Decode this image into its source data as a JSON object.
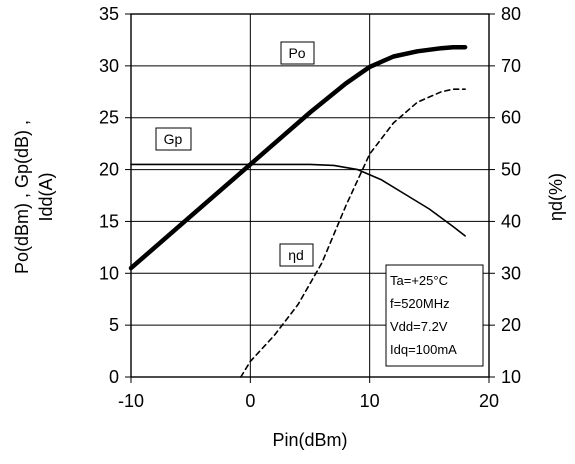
{
  "chart_data": {
    "type": "line",
    "xlabel": "Pin(dBm)",
    "ylabel_left": "Po(dBm) , Gp(dB) , Idd(A)",
    "ylabel_right": "ηd(%)",
    "xlim": [
      -10,
      20
    ],
    "ylim_left": [
      0,
      35
    ],
    "ylim_right": [
      10,
      80
    ],
    "x_ticks": [
      "-10",
      "0",
      "10",
      "20"
    ],
    "y_ticks_left": [
      "0",
      "5",
      "10",
      "15",
      "20",
      "25",
      "30",
      "35"
    ],
    "y_ticks_right": [
      "10",
      "20",
      "30",
      "40",
      "50",
      "60",
      "70",
      "80"
    ],
    "grid": true,
    "series": [
      {
        "name": "Po",
        "axis": "left",
        "style": "thick",
        "x": [
          -10,
          -5,
          0,
          5,
          8,
          10,
          12,
          14,
          16,
          17,
          18
        ],
        "y": [
          10.5,
          15.5,
          20.5,
          25.5,
          28.3,
          29.9,
          30.9,
          31.4,
          31.7,
          31.8,
          31.8
        ]
      },
      {
        "name": "Gp",
        "axis": "left",
        "style": "thin",
        "x": [
          -10,
          -5,
          0,
          5,
          7,
          9,
          11,
          13,
          15,
          17,
          18
        ],
        "y": [
          20.5,
          20.5,
          20.5,
          20.5,
          20.4,
          20.0,
          19.0,
          17.6,
          16.2,
          14.5,
          13.6
        ]
      },
      {
        "name": "ηd",
        "axis": "right",
        "style": "dashed",
        "x": [
          -0.8,
          0,
          2,
          4,
          6,
          8,
          10,
          12,
          14,
          16,
          17,
          18
        ],
        "y": [
          10,
          13,
          18,
          24,
          32,
          43,
          53,
          59,
          63,
          65,
          65.5,
          65.5
        ]
      }
    ],
    "annotation_box": [
      "Ta=+25°C",
      "f=520MHz",
      "Vdd=7.2V",
      "Idq=100mA"
    ]
  },
  "labels": {
    "po": "Po",
    "gp": "Gp",
    "eta": "ηd"
  },
  "colors": {
    "line": "#000000",
    "grid": "#000000",
    "background": "#ffffff"
  }
}
